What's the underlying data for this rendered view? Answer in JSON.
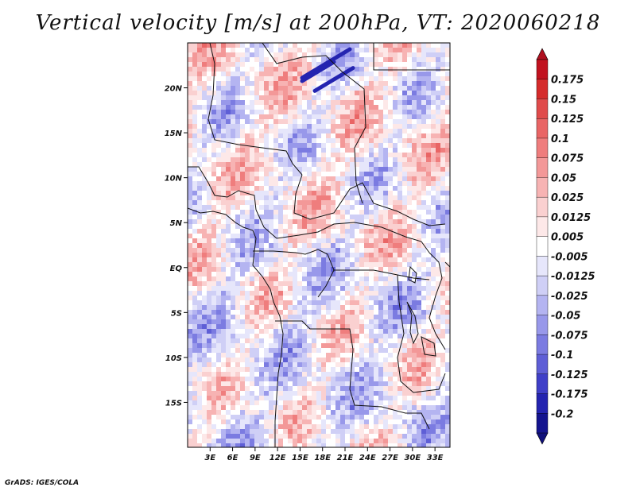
{
  "title": "Vertical velocity [m/s] at 200hPa, VT: 2020060218",
  "credit": "GrADS: IGES/COLA",
  "map": {
    "projection": "lat-lon",
    "lon_range": [
      0,
      35
    ],
    "lat_range": [
      -20,
      25
    ],
    "lon_ticks": [
      "3E",
      "6E",
      "9E",
      "12E",
      "15E",
      "18E",
      "21E",
      "24E",
      "27E",
      "30E",
      "33E"
    ],
    "lon_tick_values": [
      3,
      6,
      9,
      12,
      15,
      18,
      21,
      24,
      27,
      30,
      33
    ],
    "lat_ticks": [
      "20N",
      "15N",
      "10N",
      "5N",
      "EQ",
      "5S",
      "10S",
      "15S"
    ],
    "lat_tick_values": [
      20,
      15,
      10,
      5,
      0,
      -5,
      -10,
      -15
    ],
    "field": "vertical velocity",
    "units": "m/s",
    "level": "200hPa",
    "valid_time": "2020060218"
  },
  "colorbar": {
    "orientation": "vertical",
    "placement": "right",
    "labels": [
      "0.175",
      "0.15",
      "0.125",
      "0.1",
      "0.075",
      "0.05",
      "0.025",
      "0.0125",
      "0.005",
      "-0.005",
      "-0.0125",
      "-0.025",
      "-0.05",
      "-0.075",
      "-0.1",
      "-0.125",
      "-0.175",
      "-0.2"
    ],
    "colors": [
      "#c1121f",
      "#d52b2b",
      "#e04b4b",
      "#e96565",
      "#ef7d7d",
      "#f39898",
      "#f7b3b3",
      "#fad0d0",
      "#fde8e8",
      "#ffffff",
      "#e6e6fb",
      "#cfcff6",
      "#b4b4f1",
      "#9898ea",
      "#7b7be1",
      "#5e5ed6",
      "#3f3fc8",
      "#2424b0",
      "#14148f"
    ],
    "top_arrow_color": "#b01020",
    "bottom_arrow_color": "#10107a"
  }
}
